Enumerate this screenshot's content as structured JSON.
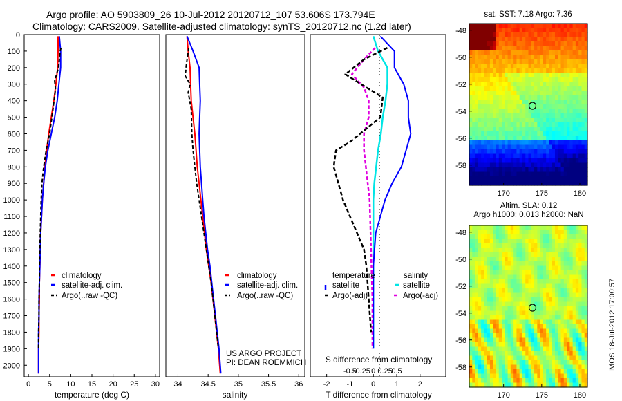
{
  "header": {
    "title_line1": "Argo profile: AO 5903809_26 10-Jul-2012 20120712_107 53.606S 173.794E",
    "title_line2": "Climatology: CARS2009. Satellite-adjusted climatology: synTS_20120712.nc (1.2d later)"
  },
  "colors": {
    "climatology": "#ff0000",
    "satellite": "#0000ff",
    "argo": "#000000",
    "sat_salinity": "#00e5e5",
    "argo_salinity": "#e000e0",
    "zero_line": "#000000"
  },
  "depth_axis": {
    "ticks": [
      "0",
      "100",
      "200",
      "300",
      "400",
      "500",
      "600",
      "700",
      "800",
      "900",
      "1000",
      "1100",
      "1200",
      "1300",
      "1400",
      "1500",
      "1600",
      "1700",
      "1800",
      "1900",
      "2000"
    ],
    "ylim": [
      0,
      2070
    ]
  },
  "panels": {
    "temperature": {
      "xlabel": "temperature (deg C)",
      "xlim": [
        -1,
        31
      ],
      "xticks": [
        "0",
        "5",
        "10",
        "15",
        "20",
        "25",
        "30"
      ],
      "legend": [
        "climatology",
        "satellite-adj. clim.",
        "Argo(..raw -QC)"
      ]
    },
    "salinity": {
      "xlabel": "salinity",
      "xlim": [
        33.8,
        36.1
      ],
      "xticks": [
        "34",
        "34.5",
        "35",
        "35.5",
        "36"
      ],
      "legend": [
        "climatology",
        "satellite-adj. clim.",
        "Argo(..raw -QC)"
      ],
      "credit_line1": "US ARGO PROJECT",
      "credit_line2": "PI: DEAN ROEMMICH"
    },
    "difference": {
      "xlabel": "T difference from climatology",
      "s_axis_label": "S difference from climatology",
      "xlim": [
        -2.7,
        3.1
      ],
      "xticks": [
        "-2",
        "-1",
        "0",
        "1",
        "2"
      ],
      "s_ticks": [
        "-0.5",
        "-0.25",
        "0",
        "0.25",
        "0.5"
      ],
      "legend_temperature_title": "temperature",
      "legend_salinity_title": "salinity",
      "legend_temperature": [
        "satellite",
        "Argo(-adj)"
      ],
      "legend_salinity": [
        "satellite",
        "Argo(-adj)"
      ]
    }
  },
  "maps": {
    "sst_title": "sat. SST: 7.18 Argo: 7.36",
    "sla_title_line1": "Altim. SLA: 0.12",
    "sla_title_line2": "Argo h1000: 0.013 h2000: NaN",
    "lat_ticks": [
      "-48",
      "-50",
      "-52",
      "-54",
      "-56",
      "-58"
    ],
    "lon_ticks": [
      "170",
      "175",
      "180"
    ],
    "argo_lon": 173.794,
    "argo_lat": -53.606,
    "lon_range": [
      165.5,
      181
    ],
    "lat_range": [
      -59.5,
      -47.5
    ]
  },
  "stamp": "IMOS 18-Jul-2012 17:00:57",
  "chart_data": [
    {
      "type": "line",
      "panel": "temperature",
      "xlabel": "temperature (deg C)",
      "ylabel": "",
      "xlim": [
        -1,
        31
      ],
      "ylim": [
        2070,
        0
      ],
      "series": [
        {
          "name": "climatology",
          "x": [
            7.0,
            7.0,
            6.9,
            6.5,
            6.0,
            5.4,
            4.8,
            4.3,
            3.9,
            3.6,
            3.3,
            3.1,
            2.9,
            2.8,
            2.7,
            2.6,
            2.6,
            2.5,
            2.5,
            2.4,
            2.4
          ],
          "y": [
            10,
            100,
            200,
            300,
            400,
            500,
            600,
            700,
            800,
            900,
            1000,
            1100,
            1200,
            1300,
            1400,
            1500,
            1600,
            1700,
            1800,
            1900,
            2050
          ]
        },
        {
          "name": "satellite-adj. clim.",
          "x": [
            7.3,
            7.6,
            7.6,
            7.2,
            6.8,
            6.2,
            5.4,
            4.6,
            4.0,
            3.6,
            3.3,
            3.1,
            2.9,
            2.8,
            2.7,
            2.6,
            2.5,
            2.5,
            2.4,
            2.4,
            2.4
          ],
          "y": [
            10,
            100,
            200,
            300,
            400,
            500,
            600,
            700,
            800,
            900,
            1000,
            1100,
            1200,
            1300,
            1400,
            1500,
            1600,
            1700,
            1800,
            1900,
            2050
          ]
        },
        {
          "name": "Argo(..raw -QC)",
          "x": [
            7.7,
            7.5,
            7.1,
            6.2,
            6.4,
            5.8,
            5.0,
            4.2,
            3.6,
            3.2,
            3.0,
            2.9,
            2.8,
            2.7,
            2.6,
            2.6,
            2.5,
            2.5,
            2.4,
            2.4
          ],
          "y": [
            80,
            100,
            200,
            280,
            330,
            450,
            600,
            700,
            800,
            900,
            1000,
            1100,
            1200,
            1300,
            1400,
            1500,
            1600,
            1700,
            1800,
            1900
          ]
        }
      ]
    },
    {
      "type": "line",
      "panel": "salinity",
      "xlabel": "salinity",
      "ylabel": "",
      "xlim": [
        33.8,
        36.1
      ],
      "ylim": [
        2070,
        0
      ],
      "series": [
        {
          "name": "climatology",
          "x": [
            34.15,
            34.17,
            34.2,
            34.21,
            34.22,
            34.25,
            34.28,
            34.3,
            34.32,
            34.35,
            34.38,
            34.41,
            34.44,
            34.47,
            34.51,
            34.55,
            34.58,
            34.61,
            34.64,
            34.67,
            34.7
          ],
          "y": [
            10,
            100,
            200,
            300,
            400,
            500,
            600,
            700,
            800,
            900,
            1000,
            1100,
            1200,
            1300,
            1400,
            1500,
            1600,
            1700,
            1800,
            1900,
            2050
          ]
        },
        {
          "name": "satellite-adj. clim.",
          "x": [
            34.15,
            34.25,
            34.35,
            34.36,
            34.37,
            34.36,
            34.35,
            34.36,
            34.37,
            34.39,
            34.41,
            34.43,
            34.46,
            34.49,
            34.53,
            34.56,
            34.59,
            34.62,
            34.65,
            34.68,
            34.71
          ],
          "y": [
            10,
            100,
            200,
            300,
            400,
            500,
            600,
            700,
            800,
            900,
            1000,
            1100,
            1200,
            1300,
            1400,
            1500,
            1600,
            1700,
            1800,
            1900,
            2050
          ]
        },
        {
          "name": "Argo(..raw -QC)",
          "x": [
            34.18,
            34.14,
            34.12,
            34.2,
            34.17,
            34.22,
            34.23,
            34.25,
            34.28,
            34.31,
            34.35,
            34.39,
            34.43,
            34.47,
            34.51,
            34.55,
            34.58,
            34.61,
            34.64,
            34.67
          ],
          "y": [
            80,
            180,
            250,
            300,
            350,
            450,
            600,
            700,
            800,
            900,
            1000,
            1100,
            1200,
            1300,
            1400,
            1500,
            1600,
            1700,
            1800,
            1900
          ]
        }
      ]
    },
    {
      "type": "line",
      "panel": "difference",
      "xlabel": "T difference from climatology",
      "ylabel": "",
      "xlim": [
        -2.7,
        3.1
      ],
      "ylim": [
        2070,
        0
      ],
      "series": [
        {
          "name": "satellite",
          "x": [
            0.3,
            0.9,
            0.9,
            1.3,
            1.5,
            1.5,
            1.6,
            1.4,
            1.2,
            0.8,
            0.5,
            0.3,
            0.1,
            0.05,
            0.0,
            0.0,
            0.0,
            0.0,
            0.0,
            0.0
          ],
          "y": [
            10,
            100,
            200,
            300,
            400,
            500,
            600,
            700,
            800,
            900,
            1000,
            1100,
            1200,
            1300,
            1400,
            1500,
            1600,
            1700,
            1800,
            1900
          ]
        },
        {
          "name": "Argo(-adj)",
          "x": [
            0.6,
            -0.4,
            -1.2,
            -0.3,
            0.4,
            0.3,
            -1.0,
            -1.6,
            -1.7,
            -1.5,
            -1.3,
            -1.0,
            -0.7,
            -0.4,
            -0.3,
            -0.25,
            -0.2,
            -0.15,
            -0.1
          ],
          "y": [
            80,
            150,
            240,
            320,
            380,
            500,
            650,
            700,
            800,
            900,
            1000,
            1100,
            1200,
            1300,
            1400,
            1500,
            1600,
            1700,
            1800
          ]
        }
      ],
      "salinity_series": [
        {
          "name": "satellite",
          "x": [
            0.0,
            0.05,
            0.15,
            0.15,
            0.13,
            0.1,
            0.08,
            0.05,
            0.03,
            0.01,
            0.0,
            0.0,
            0.0,
            0.0,
            0.0
          ],
          "y": [
            10,
            100,
            200,
            300,
            400,
            500,
            600,
            700,
            800,
            900,
            1000,
            1200,
            1400,
            1600,
            1900
          ]
        },
        {
          "name": "Argo(-adj)",
          "x": [
            0.02,
            -0.1,
            -0.23,
            -0.1,
            -0.05,
            -0.05,
            -0.1,
            -0.1,
            -0.08,
            -0.06,
            -0.04,
            -0.03,
            -0.02,
            -0.01,
            -0.01
          ],
          "y": [
            80,
            150,
            240,
            320,
            400,
            500,
            600,
            700,
            800,
            900,
            1000,
            1200,
            1400,
            1600,
            1900
          ]
        }
      ]
    }
  ]
}
